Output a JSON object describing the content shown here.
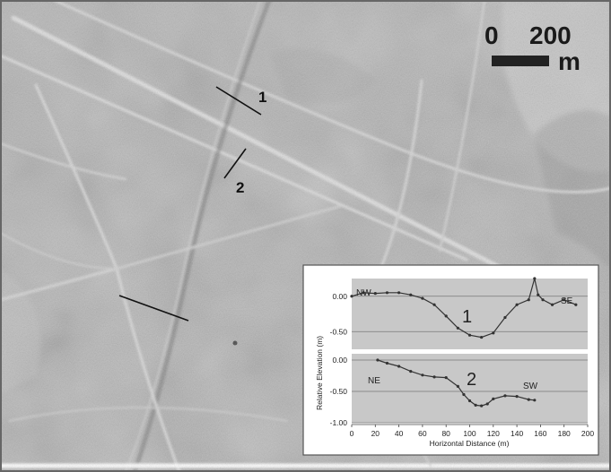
{
  "map": {
    "scale_bar": {
      "zero_label": "0",
      "distance_label": "200",
      "unit_label": "m"
    },
    "transects": [
      {
        "label": "1"
      },
      {
        "label": "2"
      }
    ]
  },
  "inset": {
    "colors": {
      "line": "#333333",
      "panel": "#c8c8c8",
      "frame": "#ffffff"
    },
    "chart_data": {
      "type": "line",
      "xlabel": "Horizontal Distance (m)",
      "ylabel": "Relative Elevation (m)",
      "xlim": [
        0,
        200
      ],
      "x_ticks": [
        "0",
        "20",
        "40",
        "60",
        "80",
        "100",
        "120",
        "140",
        "160",
        "180",
        "200"
      ],
      "panels": [
        {
          "profile_label": "1",
          "start_label": "NW",
          "end_label": "SE",
          "ylim": [
            -0.75,
            0.25
          ],
          "y_ticks": [
            "0.00",
            "-0.50"
          ],
          "tick_values": [
            0.0,
            -0.5
          ],
          "x": [
            0,
            10,
            20,
            30,
            40,
            50,
            60,
            70,
            80,
            90,
            100,
            110,
            120,
            130,
            140,
            150,
            155,
            158,
            162,
            170,
            180,
            190
          ],
          "y": [
            0.0,
            0.05,
            0.04,
            0.05,
            0.05,
            0.02,
            -0.03,
            -0.12,
            -0.28,
            -0.45,
            -0.55,
            -0.58,
            -0.52,
            -0.3,
            -0.12,
            -0.05,
            0.25,
            0.02,
            -0.05,
            -0.12,
            -0.05,
            -0.12
          ]
        },
        {
          "profile_label": "2",
          "start_label": "NE",
          "end_label": "SW",
          "ylim": [
            -1.0,
            0.1
          ],
          "y_ticks": [
            "0.00",
            "-0.50",
            "-1.00"
          ],
          "tick_values": [
            0.0,
            -0.5,
            -1.0
          ],
          "x": [
            22,
            30,
            40,
            50,
            60,
            70,
            80,
            90,
            95,
            100,
            105,
            110,
            115,
            120,
            130,
            140,
            150,
            155
          ],
          "y": [
            0.0,
            -0.05,
            -0.1,
            -0.18,
            -0.24,
            -0.27,
            -0.28,
            -0.42,
            -0.55,
            -0.65,
            -0.72,
            -0.73,
            -0.7,
            -0.62,
            -0.57,
            -0.58,
            -0.63,
            -0.64
          ]
        }
      ]
    }
  }
}
